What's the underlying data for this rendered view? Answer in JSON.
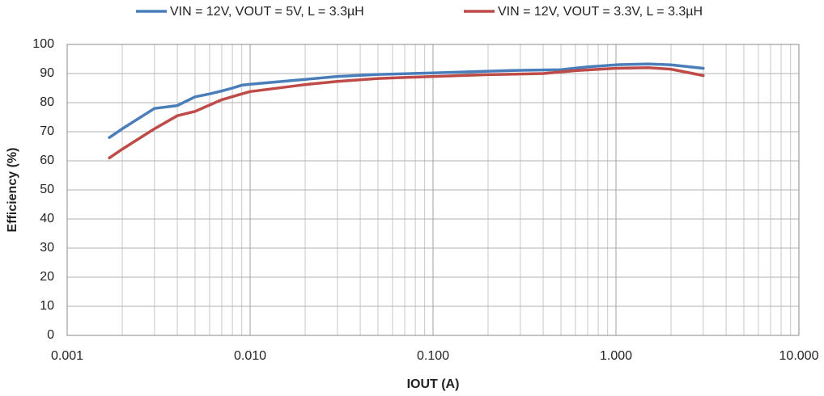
{
  "chart_data": {
    "type": "line",
    "xlabel": "IOUT (A)",
    "ylabel": "Efficiency (%)",
    "xscale": "log",
    "grid": true,
    "legend": "top",
    "xlim": [
      0.001,
      10
    ],
    "ylim": [
      0,
      100
    ],
    "xticks": [
      0.001,
      {
        "value": 0.01,
        "label": "0.010"
      },
      {
        "value": 0.1,
        "label": "0.100"
      },
      {
        "value": 1,
        "label": "1.000"
      },
      {
        "value": 10,
        "label": "10.000"
      }
    ],
    "xminorticks": [
      0.002,
      0.003,
      0.004,
      0.005,
      0.006,
      0.007,
      0.008,
      0.009,
      0.02,
      0.03,
      0.04,
      0.05,
      0.06,
      0.07,
      0.08,
      0.09,
      0.2,
      0.3,
      0.4,
      0.5,
      0.6,
      0.7,
      0.8,
      0.9,
      2,
      3,
      4,
      5,
      6,
      7,
      8,
      9
    ],
    "yticks": [
      0,
      10,
      20,
      30,
      40,
      50,
      60,
      70,
      80,
      90,
      100
    ],
    "series": [
      {
        "name": "VIN = 12V, VOUT = 5V, L = 3.3µH",
        "color": "#4a7ebb",
        "x": [
          0.0017,
          0.002,
          0.003,
          0.004,
          0.005,
          0.006,
          0.007,
          0.008,
          0.009,
          0.01,
          0.02,
          0.03,
          0.05,
          0.1,
          0.2,
          0.3,
          0.5,
          0.7,
          1,
          1.5,
          2,
          3
        ],
        "values": [
          68,
          71,
          78,
          79,
          82,
          83,
          84,
          85,
          86,
          86.3,
          88,
          89,
          89.7,
          90.2,
          90.8,
          91.1,
          91.3,
          92.3,
          93,
          93.3,
          93,
          91.8
        ]
      },
      {
        "name": "VIN = 12V, VOUT = 3.3V, L = 3.3µH",
        "color": "#be4b48",
        "x": [
          0.0017,
          0.002,
          0.003,
          0.004,
          0.005,
          0.007,
          0.009,
          0.01,
          0.02,
          0.03,
          0.05,
          0.1,
          0.2,
          0.4,
          0.6,
          1,
          1.5,
          2,
          3
        ],
        "values": [
          61,
          64,
          71,
          75.5,
          77,
          81,
          83,
          83.8,
          86.2,
          87.3,
          88.3,
          89,
          89.6,
          90,
          91,
          91.8,
          92,
          91.5,
          89.3
        ]
      }
    ]
  }
}
